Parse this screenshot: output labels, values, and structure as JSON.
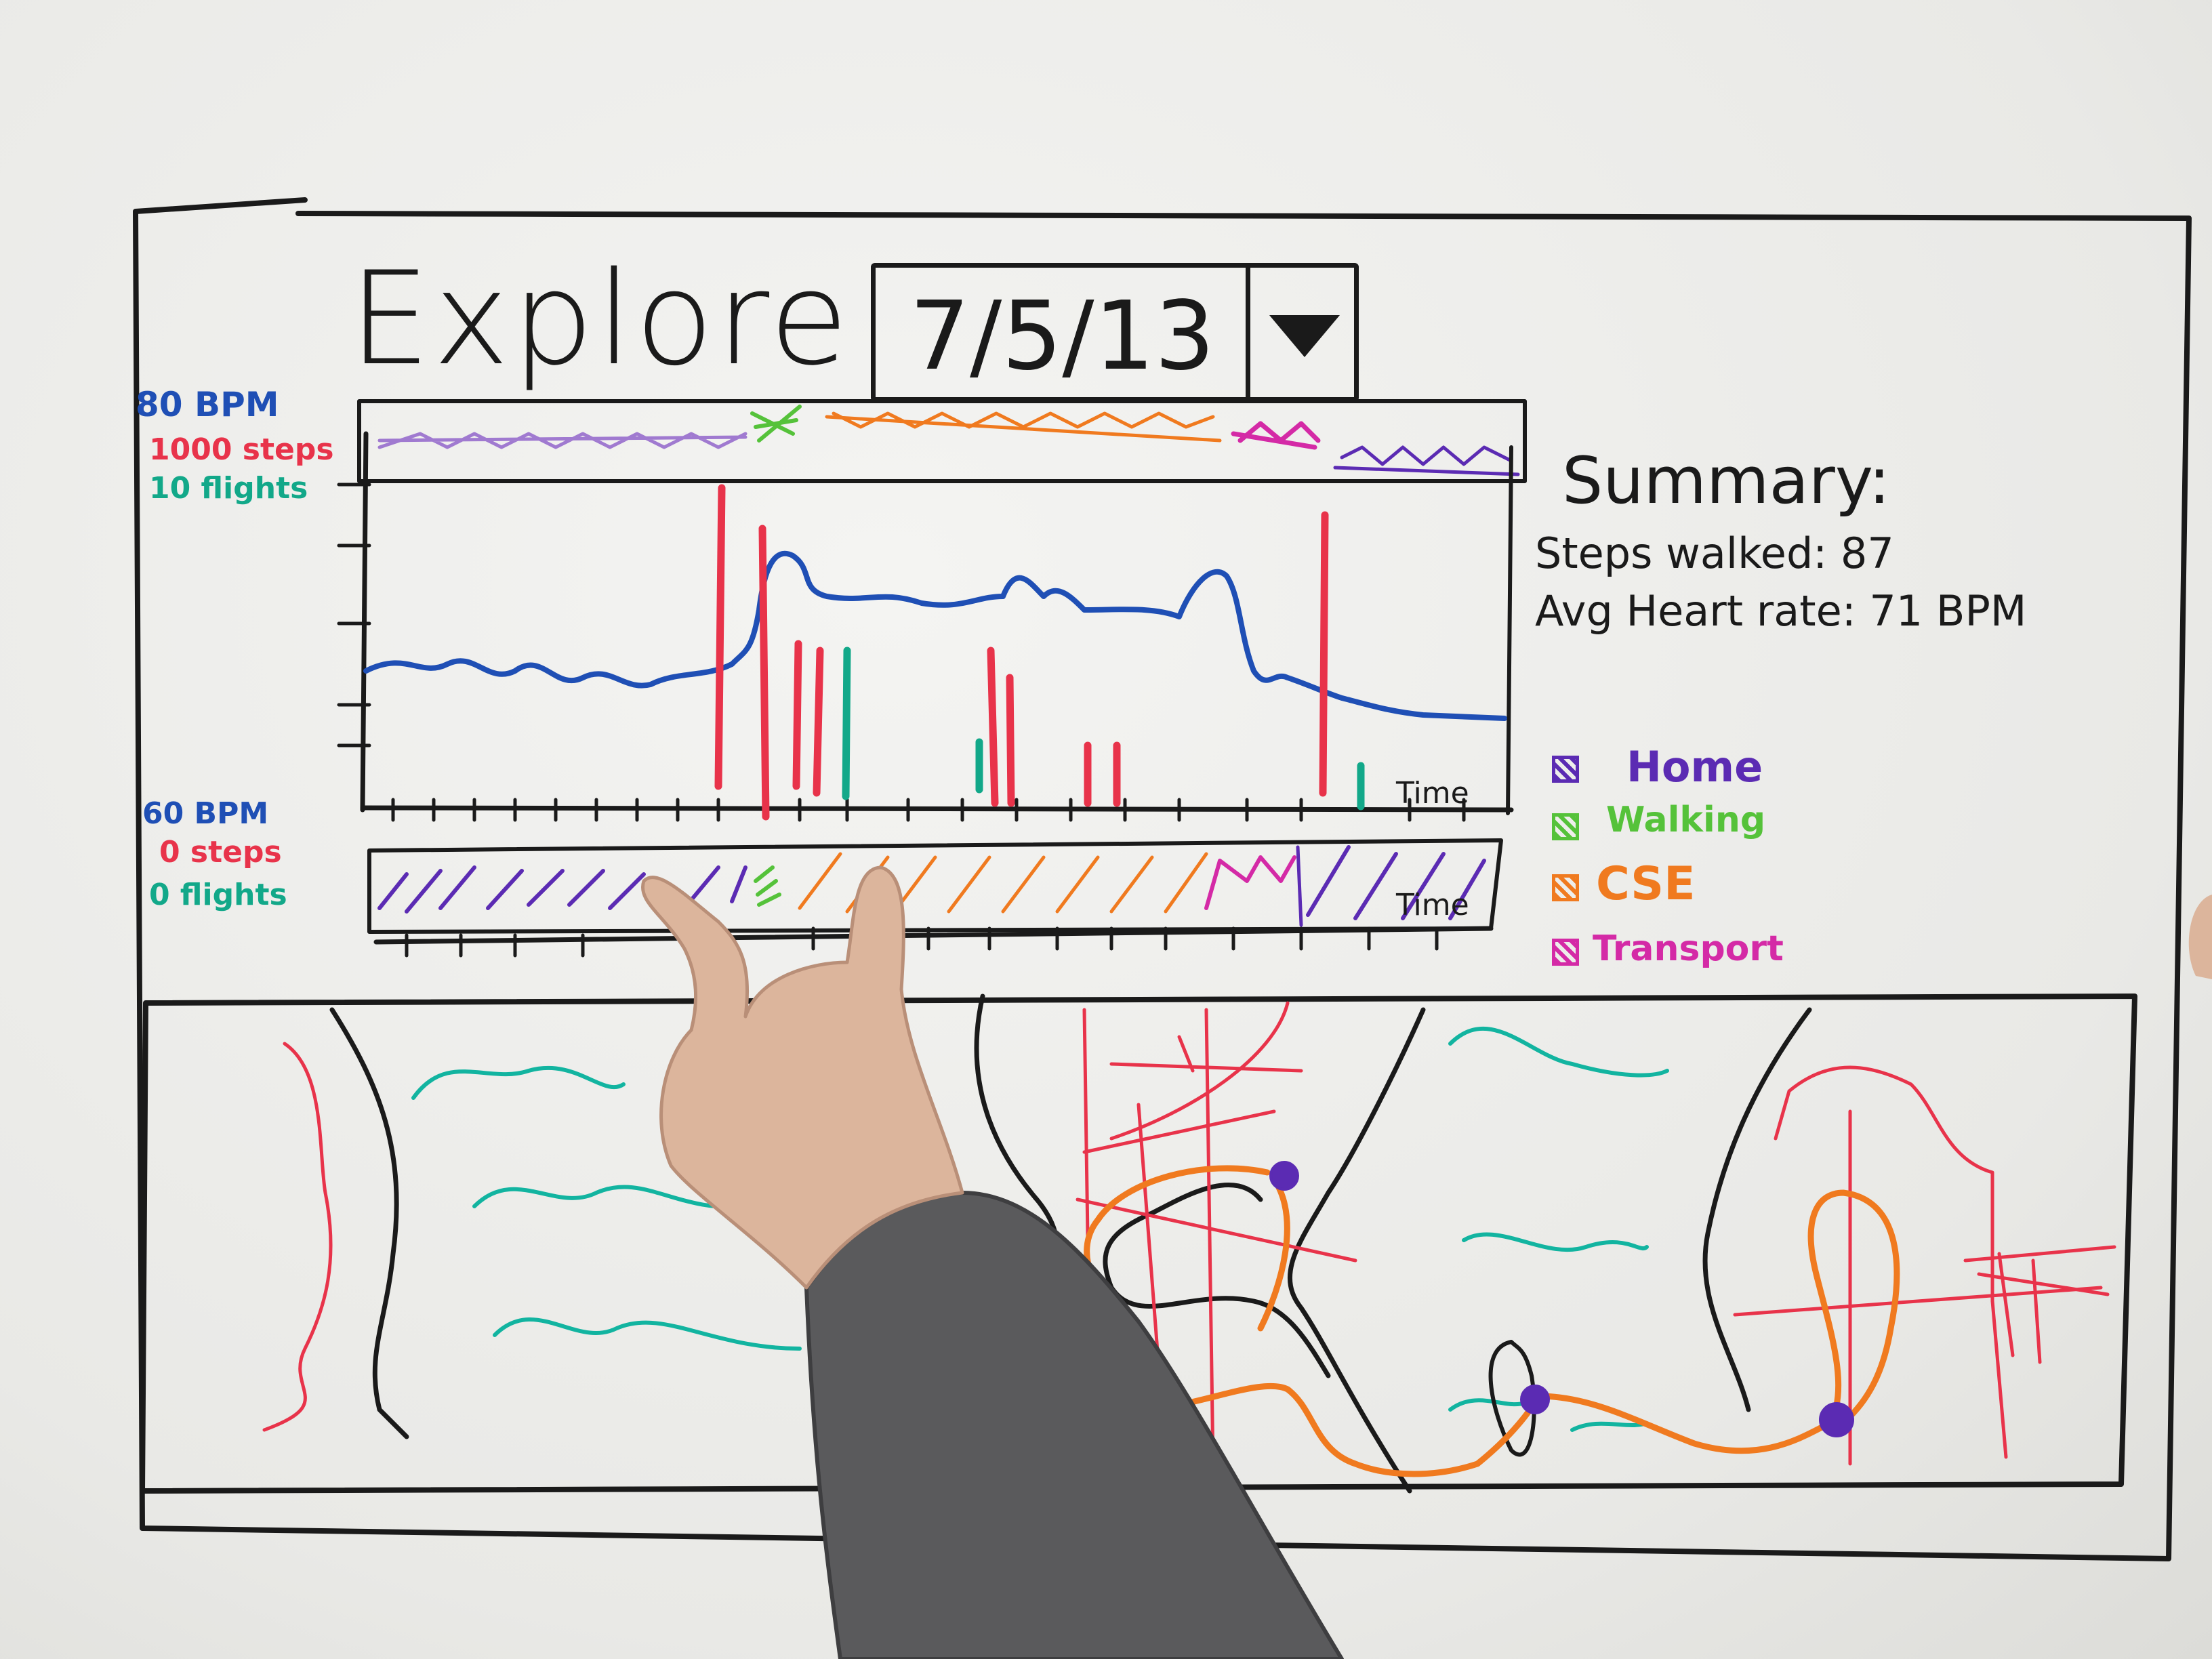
{
  "header": {
    "title": "Explore"
  },
  "date_picker": {
    "value": "7/5/13",
    "dropdown_icon": "chevron-down-icon"
  },
  "chart": {
    "y_max_labels": [
      "80 BPM",
      "1000 steps",
      "10 flights"
    ],
    "y_min_labels": [
      "60 BPM",
      "0 steps",
      "0 flights"
    ],
    "time_label": "Time",
    "colors": {
      "heart_rate": "#1f4fb5",
      "steps": "#e8334a",
      "flights": "#12a889"
    }
  },
  "timeline": {
    "time_label": "Time"
  },
  "summary": {
    "title": "Summary:",
    "steps_line": "Steps walked: 87",
    "heart_line": "Avg Heart rate: 71 BPM"
  },
  "legend": {
    "items": [
      {
        "label": "Home",
        "color": "#5b2bb3"
      },
      {
        "label": "Walking",
        "color": "#55c23a"
      },
      {
        "label": "CSE",
        "color": "#f07a1f"
      },
      {
        "label": "Transport",
        "color": "#d42aa6"
      }
    ]
  }
}
